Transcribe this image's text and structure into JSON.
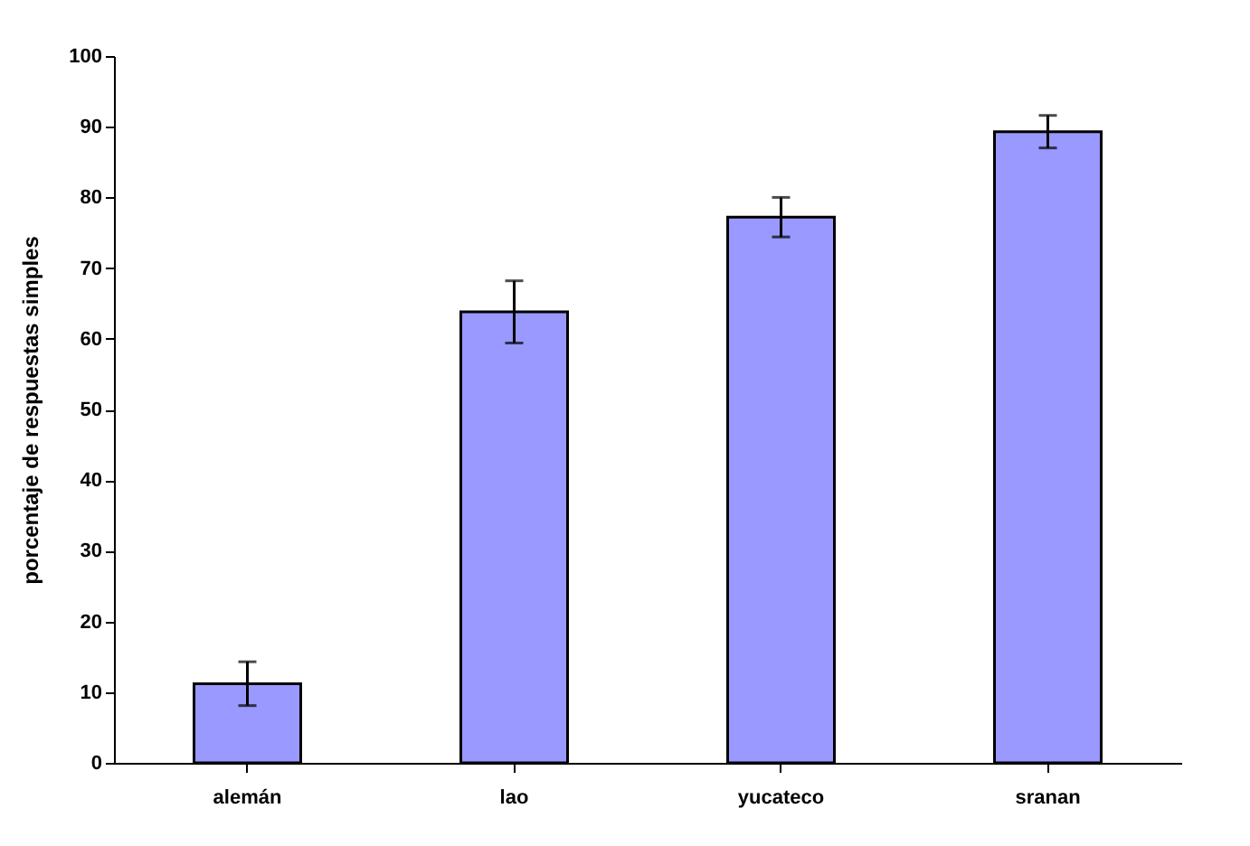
{
  "chart_data": {
    "type": "bar",
    "ylabel": "porcentaje de respuestas simples",
    "categories": [
      "alemán",
      "lao",
      "yucateco",
      "sranan"
    ],
    "values": [
      11.2,
      63.8,
      77.2,
      89.3
    ],
    "errors": [
      3.1,
      4.4,
      2.8,
      2.3
    ],
    "color": "#9999ff",
    "ylim": [
      0,
      100
    ],
    "yticks": [
      0,
      10,
      20,
      30,
      40,
      50,
      60,
      70,
      80,
      90,
      100
    ],
    "grid": false
  }
}
